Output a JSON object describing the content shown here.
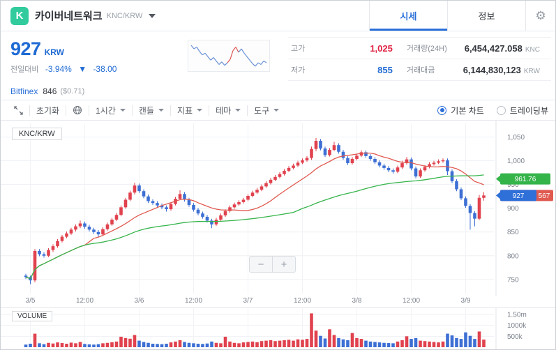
{
  "colors": {
    "accent_blue": "#2a6fd8",
    "price_blue": "#1f6ad4",
    "high_red": "#e12343",
    "brand_green": "#31cb9e"
  },
  "header": {
    "logo_letter": "K",
    "title": "카이버네트워크",
    "pair": "KNC/KRW",
    "tabs": [
      {
        "label": "시세",
        "active": true
      },
      {
        "label": "정보",
        "active": false
      }
    ],
    "gear_glyph": "⚙"
  },
  "ticker": {
    "price": "927",
    "currency": "KRW",
    "change_label": "전일대비",
    "change_pct": "-3.94%",
    "change_arrow": "▼",
    "change_amt": "-38.00",
    "reference": {
      "exchange": "Bitfinex",
      "price": "846",
      "usd": "($0.71)"
    }
  },
  "stats": {
    "high_label": "고가",
    "high_value": "1,025",
    "low_label": "저가",
    "low_value": "855",
    "vol_label": "거래량(24H)",
    "vol_value": "6,454,427.058",
    "vol_unit": "KNC",
    "amount_label": "거래대금",
    "amount_value": "6,144,830,123",
    "amount_unit": "KRW"
  },
  "toolbar": {
    "reset_label": "초기화",
    "dropdowns": [
      "1시간",
      "캔들",
      "지표",
      "테마",
      "도구"
    ],
    "chart_type": [
      {
        "label": "기본 차트",
        "selected": true
      },
      {
        "label": "트레이딩뷰",
        "selected": false
      }
    ]
  },
  "chart": {
    "symbol_label": "KNC/KRW",
    "volume_label": "VOLUME",
    "zoom_out": "−",
    "zoom_in": "+",
    "price_tags": {
      "green_label": "961.76",
      "green_value": 961.76,
      "blue_label": "927",
      "blue_value": 927,
      "red_visible_label": "567",
      "red_value": 927
    }
  },
  "sparkline": {
    "values": [
      952,
      944,
      948,
      938,
      930,
      934,
      926,
      918,
      924,
      916,
      908,
      914,
      906,
      912,
      920,
      940,
      948,
      936,
      944,
      934,
      926,
      918,
      910,
      904,
      912,
      908,
      916,
      912
    ],
    "red_range": [
      13,
      17
    ]
  },
  "chart_data": {
    "type": "candlestick",
    "x_ticks": [
      "3/5",
      "12:00",
      "3/6",
      "12:00",
      "3/7",
      "12:00",
      "3/8",
      "12:00",
      "3/9"
    ],
    "y_ticks": [
      {
        "v": 1050,
        "label": "1,050"
      },
      {
        "v": 1000,
        "label": "1,000"
      },
      {
        "v": 950,
        "label": "950"
      },
      {
        "v": 900,
        "label": "900"
      },
      {
        "v": 850,
        "label": "850"
      },
      {
        "v": 800,
        "label": "800"
      },
      {
        "v": 750,
        "label": "750"
      }
    ],
    "volume_ticks": [
      {
        "v": 1500,
        "label": "1.50m"
      },
      {
        "v": 1000,
        "label": "1000k"
      },
      {
        "v": 500,
        "label": "500k"
      }
    ],
    "y_range": [
      735,
      1070
    ],
    "volume_max": 1500,
    "ma_windows": {
      "red": 14,
      "green": 60
    },
    "colors": {
      "up": "#e0424e",
      "down": "#3d6fd4",
      "ma_green": "#35b44a",
      "ma_red": "#e05a50",
      "tag_green": "#35b44a",
      "tag_blue": "#2f6fd8",
      "tag_red": "#e05a50",
      "grid": "#eef1f4"
    },
    "candles": [
      [
        758,
        762,
        751,
        755
      ],
      [
        755,
        758,
        740,
        748
      ],
      [
        748,
        814,
        744,
        810
      ],
      [
        810,
        814,
        799,
        803
      ],
      [
        803,
        807,
        796,
        800
      ],
      [
        800,
        816,
        797,
        812
      ],
      [
        812,
        824,
        808,
        820
      ],
      [
        820,
        835,
        817,
        831
      ],
      [
        831,
        844,
        828,
        840
      ],
      [
        840,
        851,
        837,
        847
      ],
      [
        847,
        859,
        844,
        855
      ],
      [
        855,
        866,
        851,
        862
      ],
      [
        862,
        874,
        858,
        868
      ],
      [
        868,
        872,
        857,
        861
      ],
      [
        861,
        865,
        851,
        855
      ],
      [
        855,
        859,
        846,
        850
      ],
      [
        850,
        854,
        840,
        845
      ],
      [
        845,
        860,
        842,
        856
      ],
      [
        856,
        870,
        853,
        866
      ],
      [
        866,
        880,
        863,
        876
      ],
      [
        876,
        890,
        873,
        886
      ],
      [
        886,
        906,
        883,
        902
      ],
      [
        902,
        922,
        899,
        918
      ],
      [
        918,
        937,
        915,
        933
      ],
      [
        933,
        954,
        929,
        948
      ],
      [
        948,
        952,
        932,
        936
      ],
      [
        936,
        940,
        921,
        925
      ],
      [
        925,
        929,
        911,
        915
      ],
      [
        915,
        919,
        907,
        911
      ],
      [
        911,
        915,
        902,
        906
      ],
      [
        906,
        910,
        898,
        902
      ],
      [
        902,
        906,
        893,
        898
      ],
      [
        898,
        913,
        895,
        909
      ],
      [
        909,
        924,
        906,
        920
      ],
      [
        920,
        938,
        917,
        930
      ],
      [
        930,
        934,
        914,
        918
      ],
      [
        918,
        922,
        903,
        907
      ],
      [
        907,
        911,
        893,
        897
      ],
      [
        897,
        901,
        885,
        889
      ],
      [
        889,
        893,
        878,
        882
      ],
      [
        882,
        886,
        870,
        874
      ],
      [
        874,
        878,
        858,
        866
      ],
      [
        866,
        880,
        863,
        876
      ],
      [
        876,
        889,
        873,
        885
      ],
      [
        885,
        898,
        882,
        894
      ],
      [
        894,
        906,
        891,
        902
      ],
      [
        902,
        912,
        899,
        908
      ],
      [
        908,
        917,
        905,
        913
      ],
      [
        913,
        922,
        910,
        918
      ],
      [
        918,
        930,
        915,
        926
      ],
      [
        926,
        937,
        923,
        933
      ],
      [
        933,
        943,
        930,
        939
      ],
      [
        939,
        950,
        936,
        946
      ],
      [
        946,
        957,
        943,
        953
      ],
      [
        953,
        964,
        950,
        960
      ],
      [
        960,
        970,
        957,
        966
      ],
      [
        966,
        976,
        963,
        972
      ],
      [
        972,
        983,
        969,
        979
      ],
      [
        979,
        989,
        976,
        985
      ],
      [
        985,
        994,
        982,
        990
      ],
      [
        990,
        1000,
        987,
        996
      ],
      [
        996,
        1005,
        993,
        1001
      ],
      [
        1001,
        1010,
        998,
        1006
      ],
      [
        1006,
        1030,
        1002,
        1025
      ],
      [
        1025,
        1048,
        1020,
        1042
      ],
      [
        1042,
        1046,
        1022,
        1026
      ],
      [
        1026,
        1030,
        1008,
        1012
      ],
      [
        1012,
        1027,
        1009,
        1023
      ],
      [
        1023,
        1040,
        1020,
        1033
      ],
      [
        1033,
        1037,
        1015,
        1019
      ],
      [
        1019,
        1023,
        1002,
        1006
      ],
      [
        1006,
        1010,
        991,
        995
      ],
      [
        995,
        1008,
        992,
        1004
      ],
      [
        1004,
        1015,
        1001,
        1011
      ],
      [
        1011,
        1022,
        1008,
        1018
      ],
      [
        1018,
        1022,
        1006,
        1010
      ],
      [
        1010,
        1014,
        1000,
        1004
      ],
      [
        1004,
        1008,
        993,
        997
      ],
      [
        997,
        1001,
        986,
        990
      ],
      [
        990,
        994,
        981,
        985
      ],
      [
        985,
        989,
        976,
        980
      ],
      [
        980,
        984,
        973,
        977
      ],
      [
        977,
        990,
        974,
        986
      ],
      [
        986,
        1000,
        983,
        995
      ],
      [
        995,
        1008,
        992,
        1003
      ],
      [
        1003,
        1007,
        980,
        984
      ],
      [
        984,
        988,
        963,
        967
      ],
      [
        967,
        984,
        964,
        980
      ],
      [
        980,
        991,
        977,
        987
      ],
      [
        987,
        997,
        984,
        993
      ],
      [
        993,
        1000,
        990,
        996
      ],
      [
        996,
        1003,
        993,
        999
      ],
      [
        999,
        1005,
        996,
        1001
      ],
      [
        1001,
        1005,
        970,
        978
      ],
      [
        978,
        982,
        953,
        957
      ],
      [
        957,
        961,
        936,
        940
      ],
      [
        940,
        944,
        917,
        921
      ],
      [
        921,
        925,
        901,
        905
      ],
      [
        905,
        909,
        855,
        890
      ],
      [
        890,
        894,
        862,
        878
      ],
      [
        878,
        928,
        875,
        922
      ],
      [
        922,
        934,
        916,
        927
      ]
    ],
    "volumes": [
      120,
      160,
      620,
      180,
      140,
      200,
      170,
      220,
      190,
      160,
      210,
      180,
      240,
      150,
      130,
      120,
      140,
      180,
      200,
      230,
      260,
      480,
      420,
      390,
      560,
      300,
      240,
      200,
      160,
      150,
      140,
      160,
      220,
      260,
      320,
      240,
      200,
      180,
      160,
      150,
      170,
      260,
      200,
      180,
      480,
      260,
      200,
      180,
      220,
      240,
      260,
      230,
      280,
      300,
      320,
      280,
      300,
      320,
      340,
      300,
      360,
      340,
      380,
      1550,
      760,
      520,
      400,
      820,
      560,
      420,
      360,
      320,
      650,
      420,
      380,
      300,
      260,
      240,
      220,
      200,
      190,
      180,
      260,
      320,
      500,
      380,
      420,
      300,
      280,
      260,
      240,
      220,
      260,
      620,
      540,
      420,
      380,
      680,
      520,
      380,
      720,
      350
    ]
  }
}
